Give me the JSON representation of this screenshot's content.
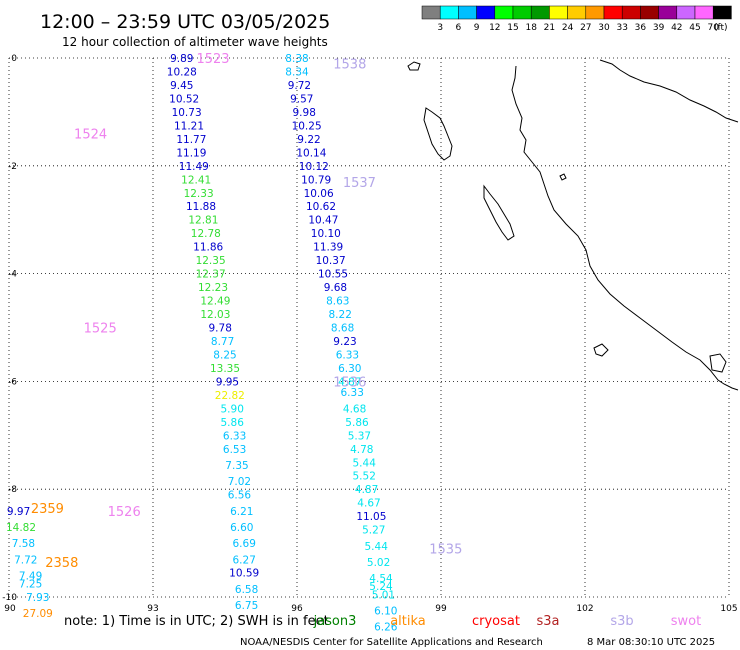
{
  "header": {
    "title": "12:00 – 23:59 UTC 03/05/2025",
    "subtitle": "12 hour collection of altimeter wave heights",
    "scale_unit": "(ft)",
    "scale_labels": [
      "3",
      "6",
      "9",
      "12",
      "15",
      "18",
      "21",
      "24",
      "27",
      "30",
      "33",
      "36",
      "39",
      "42",
      "45",
      "70"
    ],
    "scale_colors": [
      "#7f7f7f",
      "#00ffff",
      "#00bfff",
      "#0000ff",
      "#00ff00",
      "#00cc00",
      "#009900",
      "#ffff00",
      "#ffcc00",
      "#ff9900",
      "#ff0000",
      "#cc0000",
      "#990000",
      "#990099",
      "#cc66ff",
      "#ff66ff",
      "#000000"
    ]
  },
  "footer": {
    "note": "note: 1) Time is in UTC; 2) SWH is in feet",
    "satellites": [
      {
        "name": "jason3",
        "color": "#008000"
      },
      {
        "name": "altika",
        "color": "#ff8c00"
      },
      {
        "name": "cryosat",
        "color": "#ff0000"
      },
      {
        "name": "s3a",
        "color": "#b22222"
      },
      {
        "name": "s3b",
        "color": "#b3a6e8"
      },
      {
        "name": "swot",
        "color": "#ee82ee"
      }
    ],
    "credit": "NOAA/NESDIS Center for Satellite Applications and Research",
    "timestamp": "8 Mar 08:30:10 UTC 2025"
  },
  "chart_data": {
    "type": "scatter",
    "title": "12:00 – 23:59 UTC 03/05/2025",
    "subtitle": "12 hour collection of altimeter wave heights",
    "xlabel": "",
    "ylabel": "",
    "xlim": [
      90,
      105
    ],
    "ylim": [
      -10,
      0
    ],
    "x_ticks": [
      "90",
      "93",
      "96",
      "99",
      "102",
      "105"
    ],
    "y_ticks": [
      "0",
      "-2",
      "-4",
      "-6",
      "-8",
      "-10"
    ],
    "grid": true,
    "legend": "bottom",
    "track_labels": [
      {
        "text": "1523",
        "x": 94.25,
        "y": 0.0,
        "color": "#ee82ee"
      },
      {
        "text": "1538",
        "x": 97.1,
        "y": -0.1,
        "color": "#b3a6e8"
      },
      {
        "text": "1524",
        "x": 91.7,
        "y": -1.4,
        "color": "#ee82ee"
      },
      {
        "text": "1537",
        "x": 97.3,
        "y": -2.3,
        "color": "#b3a6e8"
      },
      {
        "text": "1525",
        "x": 91.9,
        "y": -5.0,
        "color": "#ee82ee"
      },
      {
        "text": "1536",
        "x": 97.1,
        "y": -6.0,
        "color": "#b3a6e8"
      },
      {
        "text": "1526",
        "x": 92.4,
        "y": -8.4,
        "color": "#ee82ee"
      },
      {
        "text": "2359",
        "x": 90.8,
        "y": -8.35,
        "color": "#ff8c00"
      },
      {
        "text": "2358",
        "x": 91.1,
        "y": -9.35,
        "color": "#ff8c00"
      },
      {
        "text": "1535",
        "x": 99.1,
        "y": -9.1,
        "color": "#b3a6e8"
      }
    ],
    "series": [
      {
        "name": "s3b",
        "points": [
          {
            "x": 93.6,
            "y": 0.0,
            "v": "9.89"
          },
          {
            "x": 93.6,
            "y": -0.25,
            "v": "10.28"
          },
          {
            "x": 93.6,
            "y": -0.5,
            "v": "9.45"
          },
          {
            "x": 93.65,
            "y": -0.75,
            "v": "10.52"
          },
          {
            "x": 93.7,
            "y": -1.0,
            "v": "10.73"
          },
          {
            "x": 93.75,
            "y": -1.25,
            "v": "11.21"
          },
          {
            "x": 93.8,
            "y": -1.5,
            "v": "11.77"
          },
          {
            "x": 93.8,
            "y": -1.75,
            "v": "11.19"
          },
          {
            "x": 93.85,
            "y": -2.0,
            "v": "11.49"
          },
          {
            "x": 93.9,
            "y": -2.25,
            "v": "12.41"
          },
          {
            "x": 93.95,
            "y": -2.5,
            "v": "12.33"
          },
          {
            "x": 94.0,
            "y": -2.75,
            "v": "11.88"
          },
          {
            "x": 94.05,
            "y": -3.0,
            "v": "12.81"
          },
          {
            "x": 94.1,
            "y": -3.25,
            "v": "12.78"
          },
          {
            "x": 94.15,
            "y": -3.5,
            "v": "11.86"
          },
          {
            "x": 94.2,
            "y": -3.75,
            "v": "12.35"
          },
          {
            "x": 94.2,
            "y": -4.0,
            "v": "12.37"
          },
          {
            "x": 94.25,
            "y": -4.25,
            "v": "12.23"
          },
          {
            "x": 94.3,
            "y": -4.5,
            "v": "12.49"
          },
          {
            "x": 94.3,
            "y": -4.75,
            "v": "12.03"
          },
          {
            "x": 94.4,
            "y": -5.0,
            "v": "9.78"
          },
          {
            "x": 94.45,
            "y": -5.25,
            "v": "8.77"
          },
          {
            "x": 94.5,
            "y": -5.5,
            "v": "8.25"
          },
          {
            "x": 94.5,
            "y": -5.75,
            "v": "13.35"
          },
          {
            "x": 94.55,
            "y": -6.0,
            "v": "9.95"
          },
          {
            "x": 94.6,
            "y": -6.25,
            "v": "22.82"
          },
          {
            "x": 94.65,
            "y": -6.5,
            "v": "5.90"
          },
          {
            "x": 94.65,
            "y": -6.75,
            "v": "5.86"
          },
          {
            "x": 94.7,
            "y": -7.0,
            "v": "6.33"
          },
          {
            "x": 94.7,
            "y": -7.25,
            "v": "6.53"
          },
          {
            "x": 94.75,
            "y": -7.55,
            "v": "7.35"
          },
          {
            "x": 94.8,
            "y": -7.85,
            "v": "7.02"
          },
          {
            "x": 94.8,
            "y": -8.1,
            "v": "6.56"
          },
          {
            "x": 94.85,
            "y": -8.4,
            "v": "6.21"
          },
          {
            "x": 94.85,
            "y": -8.7,
            "v": "6.60"
          },
          {
            "x": 94.9,
            "y": -9.0,
            "v": "6.69"
          },
          {
            "x": 94.9,
            "y": -9.3,
            "v": "6.27"
          },
          {
            "x": 94.9,
            "y": -9.55,
            "v": "10.59"
          },
          {
            "x": 94.95,
            "y": -9.85,
            "v": "6.58"
          },
          {
            "x": 94.95,
            "y": -10.15,
            "v": "6.75"
          }
        ]
      },
      {
        "name": "s3b",
        "points": [
          {
            "x": 96.0,
            "y": 0.0,
            "v": "8.38"
          },
          {
            "x": 96.0,
            "y": -0.25,
            "v": "8.34"
          },
          {
            "x": 96.05,
            "y": -0.5,
            "v": "9.72"
          },
          {
            "x": 96.1,
            "y": -0.75,
            "v": "9.57"
          },
          {
            "x": 96.15,
            "y": -1.0,
            "v": "9.98"
          },
          {
            "x": 96.2,
            "y": -1.25,
            "v": "10.25"
          },
          {
            "x": 96.25,
            "y": -1.5,
            "v": "9.22"
          },
          {
            "x": 96.3,
            "y": -1.75,
            "v": "10.14"
          },
          {
            "x": 96.35,
            "y": -2.0,
            "v": "10.12"
          },
          {
            "x": 96.4,
            "y": -2.25,
            "v": "10.79"
          },
          {
            "x": 96.45,
            "y": -2.5,
            "v": "10.06"
          },
          {
            "x": 96.5,
            "y": -2.75,
            "v": "10.62"
          },
          {
            "x": 96.55,
            "y": -3.0,
            "v": "10.47"
          },
          {
            "x": 96.6,
            "y": -3.25,
            "v": "10.10"
          },
          {
            "x": 96.65,
            "y": -3.5,
            "v": "11.39"
          },
          {
            "x": 96.7,
            "y": -3.75,
            "v": "10.37"
          },
          {
            "x": 96.75,
            "y": -4.0,
            "v": "10.55"
          },
          {
            "x": 96.8,
            "y": -4.25,
            "v": "9.68"
          },
          {
            "x": 96.85,
            "y": -4.5,
            "v": "8.63"
          },
          {
            "x": 96.9,
            "y": -4.75,
            "v": "8.22"
          },
          {
            "x": 96.95,
            "y": -5.0,
            "v": "8.68"
          },
          {
            "x": 97.0,
            "y": -5.25,
            "v": "9.23"
          },
          {
            "x": 97.05,
            "y": -5.5,
            "v": "6.33"
          },
          {
            "x": 97.1,
            "y": -5.75,
            "v": "6.30"
          },
          {
            "x": 97.1,
            "y": -6.0,
            "v": "4.87"
          },
          {
            "x": 97.15,
            "y": -6.2,
            "v": "6.33"
          },
          {
            "x": 97.2,
            "y": -6.5,
            "v": "4.68"
          },
          {
            "x": 97.25,
            "y": -6.75,
            "v": "5.86"
          },
          {
            "x": 97.3,
            "y": -7.0,
            "v": "5.37"
          },
          {
            "x": 97.35,
            "y": -7.25,
            "v": "4.78"
          },
          {
            "x": 97.4,
            "y": -7.5,
            "v": "5.44"
          },
          {
            "x": 97.4,
            "y": -7.75,
            "v": "5.52"
          },
          {
            "x": 97.45,
            "y": -8.0,
            "v": "4.87"
          },
          {
            "x": 97.5,
            "y": -8.25,
            "v": "4.67"
          },
          {
            "x": 97.55,
            "y": -8.5,
            "v": "11.05"
          },
          {
            "x": 97.6,
            "y": -8.75,
            "v": "5.27"
          },
          {
            "x": 97.65,
            "y": -9.05,
            "v": "5.44"
          },
          {
            "x": 97.7,
            "y": -9.35,
            "v": "5.02"
          },
          {
            "x": 97.75,
            "y": -9.65,
            "v": "4.54"
          },
          {
            "x": 97.75,
            "y": -9.8,
            "v": "5.24"
          },
          {
            "x": 97.8,
            "y": -9.95,
            "v": "5.01"
          },
          {
            "x": 97.85,
            "y": -10.25,
            "v": "6.10"
          },
          {
            "x": 97.85,
            "y": -10.55,
            "v": "6.26"
          }
        ]
      },
      {
        "name": "altika",
        "points": [
          {
            "x": 90.2,
            "y": -8.4,
            "v": "9.97"
          },
          {
            "x": 90.25,
            "y": -8.7,
            "v": "14.82"
          },
          {
            "x": 90.3,
            "y": -9.0,
            "v": "7.58"
          },
          {
            "x": 90.35,
            "y": -9.3,
            "v": "7.72"
          },
          {
            "x": 90.45,
            "y": -9.6,
            "v": "7.49"
          },
          {
            "x": 90.45,
            "y": -9.75,
            "v": "7.25"
          },
          {
            "x": 90.6,
            "y": -10.0,
            "v": "7.93"
          },
          {
            "x": 90.6,
            "y": -10.3,
            "v": "27.09"
          }
        ]
      }
    ]
  }
}
